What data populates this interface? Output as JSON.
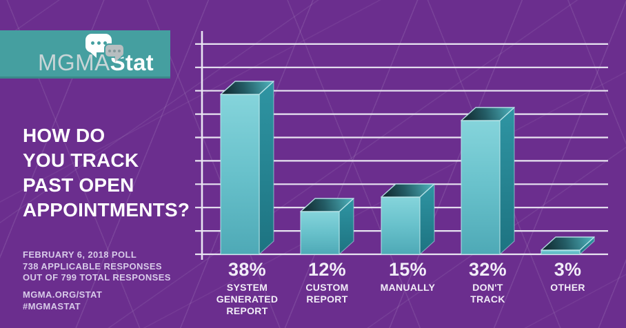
{
  "brand": {
    "banner": {
      "wordmark_light": "MGMA",
      "wordmark_bold": "Stat"
    },
    "icon": "chat-bubbles-icon",
    "banner_color": "#459FA0"
  },
  "headline": {
    "text": "HOW DO\nYOU TRACK\nPAST OPEN\nAPPOINTMENTS?"
  },
  "meta": {
    "poll_info": "FEBRUARY 6, 2018 POLL\n738 APPLICABLE RESPONSES\nOUT OF 799 TOTAL RESPONSES",
    "links": "MGMA.ORG/STAT\n#MGMASTAT"
  },
  "colors": {
    "background": "#6B2E8E",
    "banner_teal": "#459FA0",
    "bar_front": "#6FC5CF",
    "bar_side": "#2B8E9C",
    "bar_top_dark": "#14272C",
    "edge_highlight": "#BFE8EC",
    "gridline": "#E9E5F2",
    "text_light": "#D8CBE9",
    "text_white": "#FFFFFF"
  },
  "chart_data": {
    "type": "bar",
    "style": "3d-columns",
    "title": "HOW DO YOU TRACK PAST OPEN APPOINTMENTS?",
    "categories": [
      "SYSTEM GENERATED REPORT",
      "CUSTOM REPORT",
      "MANUALLY",
      "DON'T TRACK",
      "OTHER"
    ],
    "categories_display": [
      "SYSTEM\nGENERATED\nREPORT",
      "CUSTOM\nREPORT",
      "MANUALLY",
      "DON'T\nTRACK",
      "OTHER"
    ],
    "values": [
      38,
      12,
      15,
      32,
      3
    ],
    "value_labels": [
      "38%",
      "12%",
      "15%",
      "32%",
      "3%"
    ],
    "unit": "percent",
    "ylim": [
      0,
      45
    ],
    "gridlines": {
      "horizontal": 10,
      "numeric_labels": false
    },
    "legend": false,
    "xlabel": "",
    "ylabel": ""
  }
}
